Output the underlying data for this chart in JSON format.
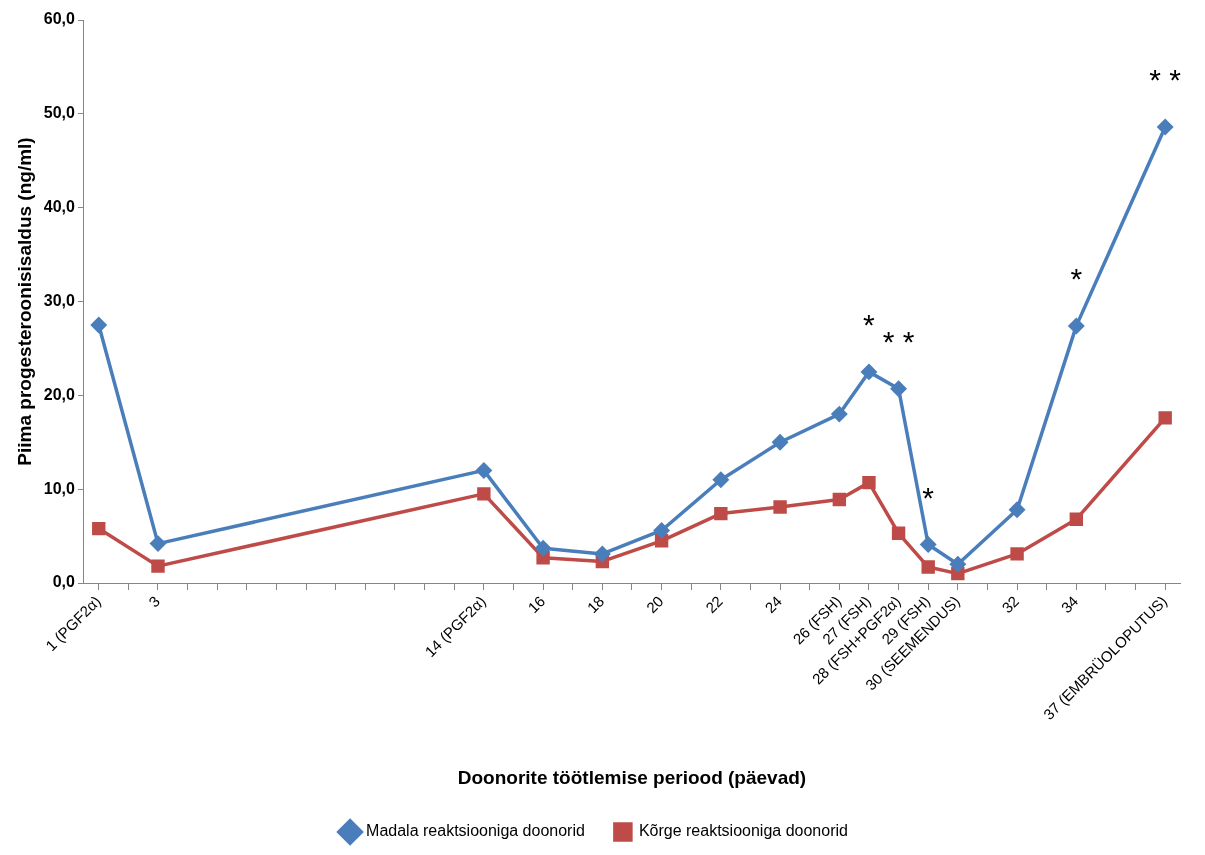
{
  "chart_data": {
    "type": "line",
    "xlabel": "Doonorite töötlemise periood (päevad)",
    "ylabel": "Piima progesteroonisisaldus (ng/ml)",
    "x": [
      1,
      3,
      14,
      16,
      18,
      20,
      22,
      24,
      26,
      27,
      28,
      29,
      30,
      32,
      34,
      37
    ],
    "series": [
      {
        "name": "Madala reaktsiooniga doonorid",
        "color": "#4a7ebb",
        "marker": "diamond",
        "values": [
          27.5,
          4.2,
          12.0,
          3.7,
          3.1,
          5.6,
          11.0,
          15.0,
          18.0,
          22.5,
          20.7,
          4.1,
          2.0,
          7.8,
          27.4,
          48.6
        ]
      },
      {
        "name": "Kõrge reaktsiooniga doonorid",
        "color": "#be4b48",
        "marker": "square",
        "values": [
          5.8,
          1.8,
          9.5,
          2.7,
          2.3,
          4.5,
          7.4,
          8.1,
          8.9,
          10.7,
          5.3,
          1.7,
          1.0,
          3.1,
          6.8,
          17.6
        ]
      }
    ],
    "xlim": [
      0.5,
      37.5
    ],
    "xticks": [
      {
        "value": 1,
        "label": "1 (PGF2α)"
      },
      {
        "value": 2,
        "label": null
      },
      {
        "value": 3,
        "label": "3"
      },
      {
        "value": 4,
        "label": null
      },
      {
        "value": 5,
        "label": null
      },
      {
        "value": 6,
        "label": null
      },
      {
        "value": 7,
        "label": null
      },
      {
        "value": 8,
        "label": null
      },
      {
        "value": 9,
        "label": null
      },
      {
        "value": 10,
        "label": null
      },
      {
        "value": 11,
        "label": null
      },
      {
        "value": 12,
        "label": null
      },
      {
        "value": 13,
        "label": null
      },
      {
        "value": 14,
        "label": "14 (PGF2α)"
      },
      {
        "value": 15,
        "label": null
      },
      {
        "value": 16,
        "label": "16"
      },
      {
        "value": 17,
        "label": null
      },
      {
        "value": 18,
        "label": "18"
      },
      {
        "value": 19,
        "label": null
      },
      {
        "value": 20,
        "label": "20"
      },
      {
        "value": 21,
        "label": null
      },
      {
        "value": 22,
        "label": "22"
      },
      {
        "value": 23,
        "label": null
      },
      {
        "value": 24,
        "label": "24"
      },
      {
        "value": 25,
        "label": null
      },
      {
        "value": 26,
        "label": "26 (FSH)"
      },
      {
        "value": 27,
        "label": "27 (FSH)"
      },
      {
        "value": 28,
        "label": "28 (FSH+PGF2α)"
      },
      {
        "value": 29,
        "label": "29 (FSH)"
      },
      {
        "value": 30,
        "label": "30 (SEEMENDUS)"
      },
      {
        "value": 31,
        "label": null
      },
      {
        "value": 32,
        "label": "32"
      },
      {
        "value": 33,
        "label": null
      },
      {
        "value": 34,
        "label": "34"
      },
      {
        "value": 35,
        "label": null
      },
      {
        "value": 36,
        "label": null
      },
      {
        "value": 37,
        "label": "37 (EMBRÜOLOPUTUS)"
      }
    ],
    "ylim": [
      0,
      60
    ],
    "yticks": [
      {
        "value": 0,
        "label": "0,0"
      },
      {
        "value": 10,
        "label": "10,0"
      },
      {
        "value": 20,
        "label": "20,0"
      },
      {
        "value": 30,
        "label": "30,0"
      },
      {
        "value": 40,
        "label": "40,0"
      },
      {
        "value": 50,
        "label": "50,0"
      },
      {
        "value": 60,
        "label": "60,0"
      }
    ],
    "annotations": [
      {
        "text": "*",
        "x": 27,
        "y": 22.5
      },
      {
        "text": "* *",
        "x": 28,
        "y": 20.7
      },
      {
        "text": "*",
        "x": 29,
        "y": 4.1
      },
      {
        "text": "*",
        "x": 34,
        "y": 27.4
      },
      {
        "text": "* *",
        "x": 37,
        "y": 48.6
      }
    ],
    "grid": false,
    "legend": "bottom",
    "line_style": "solid"
  }
}
